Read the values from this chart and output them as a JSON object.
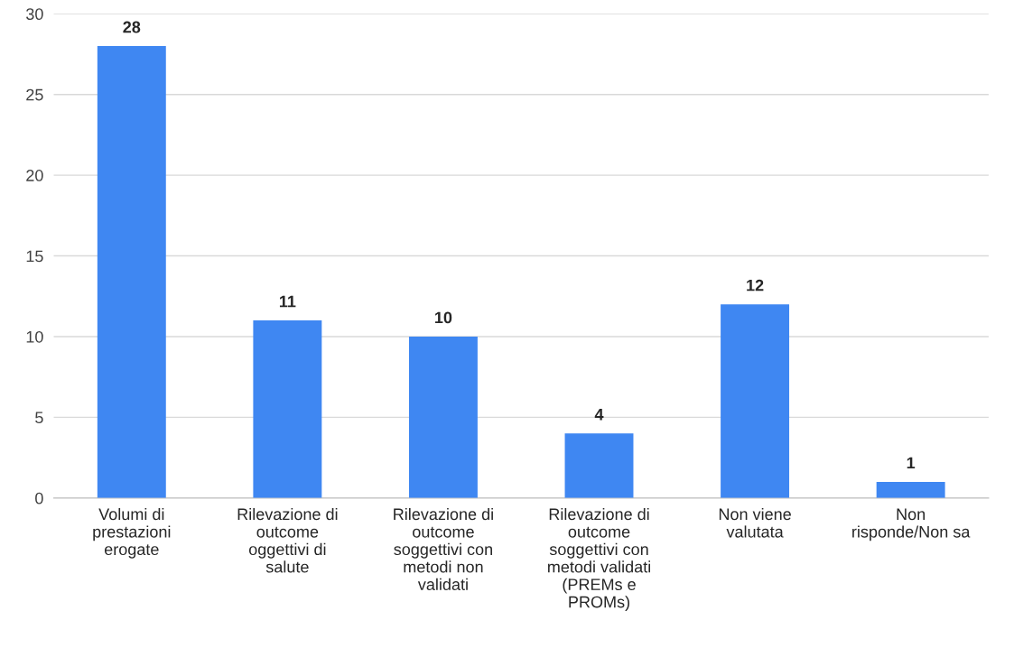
{
  "chart_data": {
    "type": "bar",
    "categories": [
      "Volumi di\nprestazioni\nerogate",
      "Rilevazione di\noutcome\noggettivi di\nsalute",
      "Rilevazione di\noutcome\nsoggettivi con\nmetodi non\nvalidati",
      "Rilevazione di\noutcome\nsoggettivi con\nmetodi validati\n(PREMs e\nPROMs)",
      "Non viene\nvalutata",
      "Non\nrisponde/Non sa"
    ],
    "values": [
      28,
      11,
      10,
      4,
      12,
      1
    ],
    "color": "#3f87f2",
    "ylim": [
      0,
      30
    ],
    "yticks": [
      0,
      5,
      10,
      15,
      20,
      25,
      30
    ],
    "grid": "y",
    "data_labels": true
  }
}
